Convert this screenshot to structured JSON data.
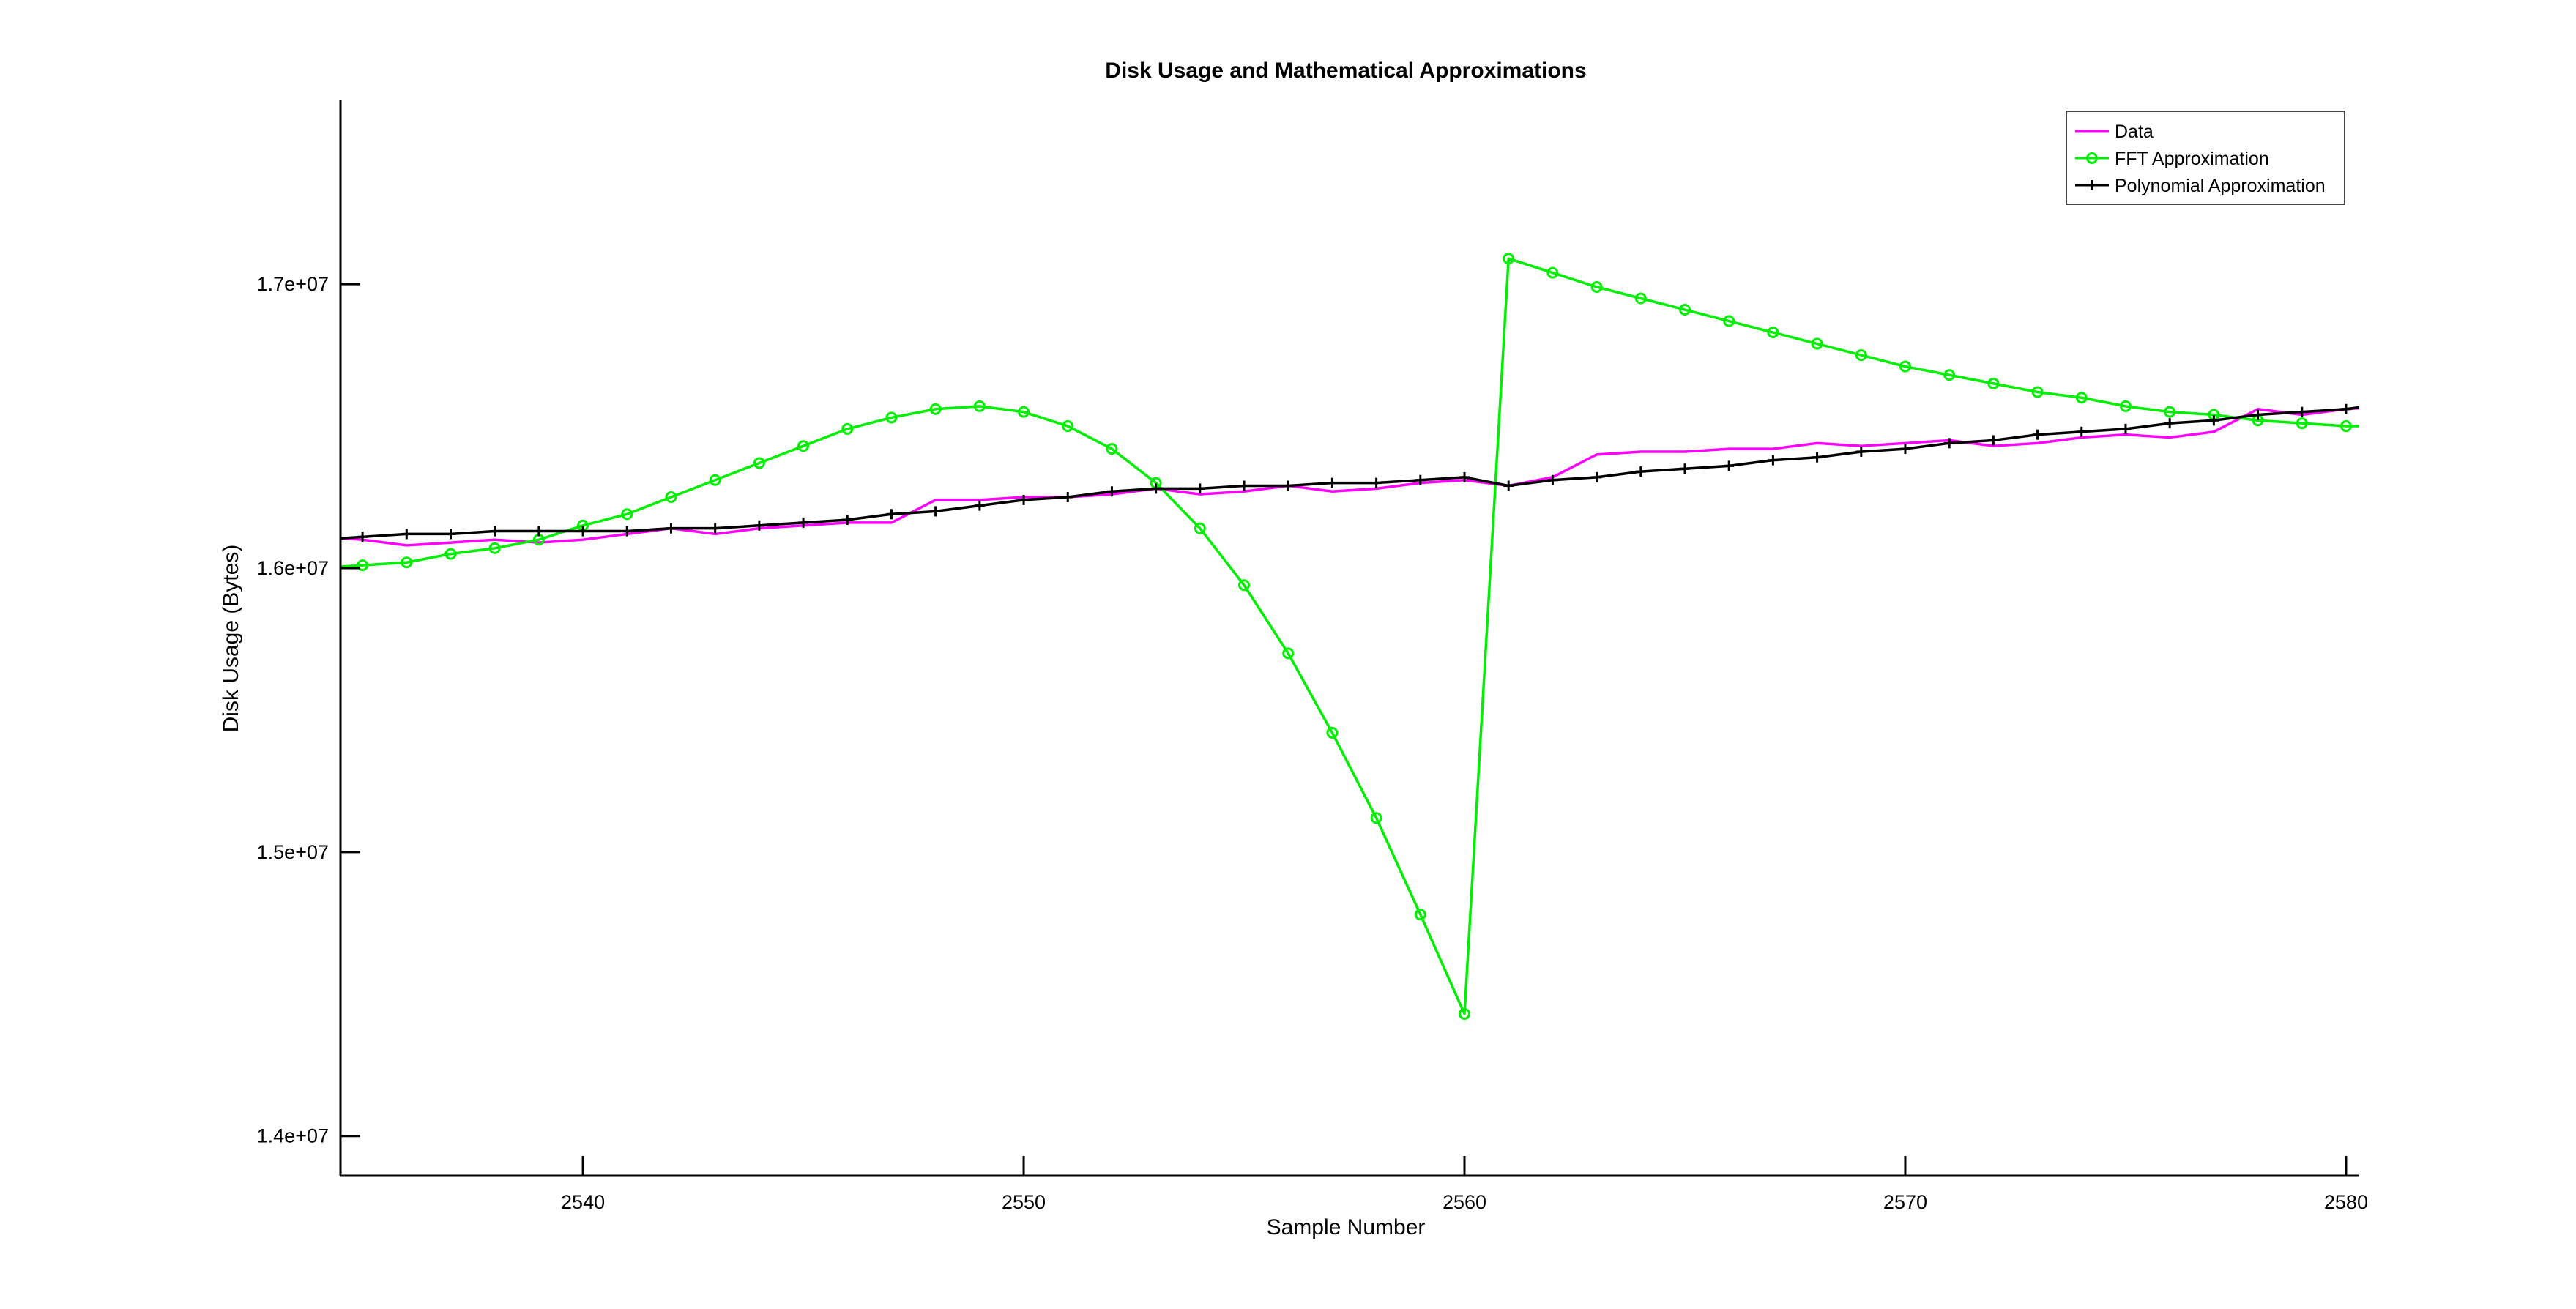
{
  "chart_data": {
    "type": "line",
    "title": "Disk Usage and Mathematical Approximations",
    "xlabel": "Sample Number",
    "ylabel": "Disk Usage (Bytes)",
    "xlim": [
      2534.5,
      2580.3
    ],
    "ylim": [
      13860000,
      17650000
    ],
    "xticks": [
      2540,
      2550,
      2560,
      2570,
      2580
    ],
    "xtick_labels": [
      "2540",
      "2550",
      "2560",
      "2570",
      "2580"
    ],
    "yticks": [
      14000000,
      15000000,
      16000000,
      17000000
    ],
    "ytick_labels": [
      "1.4e+07",
      "1.5e+07",
      "1.6e+07",
      "1.7e+07"
    ],
    "grid": false,
    "legend_position": "top-right",
    "x": [
      2534,
      2535,
      2536,
      2537,
      2538,
      2539,
      2540,
      2541,
      2542,
      2543,
      2544,
      2545,
      2546,
      2547,
      2548,
      2549,
      2550,
      2551,
      2552,
      2553,
      2554,
      2555,
      2556,
      2557,
      2558,
      2559,
      2560,
      2561,
      2562,
      2563,
      2564,
      2565,
      2566,
      2567,
      2568,
      2569,
      2570,
      2571,
      2572,
      2573,
      2574,
      2575,
      2576,
      2577,
      2578,
      2579,
      2580,
      2581
    ],
    "series": [
      {
        "name": "Data",
        "color": "#ff00ff",
        "marker": "none",
        "values": [
          16110000,
          16100000,
          16080000,
          16090000,
          16100000,
          16090000,
          16100000,
          16120000,
          16140000,
          16120000,
          16140000,
          16150000,
          16160000,
          16160000,
          16240000,
          16240000,
          16250000,
          16250000,
          16260000,
          16280000,
          16260000,
          16270000,
          16290000,
          16270000,
          16280000,
          16300000,
          16310000,
          16290000,
          16320000,
          16400000,
          16410000,
          16410000,
          16420000,
          16420000,
          16440000,
          16430000,
          16440000,
          16450000,
          16430000,
          16440000,
          16460000,
          16470000,
          16460000,
          16480000,
          16560000,
          16540000,
          16560000,
          16570000
        ]
      },
      {
        "name": "FFT Approximation",
        "color": "#00ee00",
        "marker": "circle",
        "values": [
          16000000,
          16010000,
          16020000,
          16050000,
          16070000,
          16100000,
          16150000,
          16190000,
          16250000,
          16310000,
          16370000,
          16430000,
          16490000,
          16530000,
          16560000,
          16570000,
          16550000,
          16500000,
          16420000,
          16300000,
          16140000,
          15940000,
          15700000,
          15420000,
          15120000,
          14780000,
          14430000,
          17090000,
          17040000,
          16990000,
          16950000,
          16910000,
          16870000,
          16830000,
          16790000,
          16750000,
          16710000,
          16680000,
          16650000,
          16620000,
          16600000,
          16570000,
          16550000,
          16540000,
          16520000,
          16510000,
          16500000,
          16500000
        ]
      },
      {
        "name": "Polynomial Approximation",
        "color": "#000000",
        "marker": "plus",
        "values": [
          16100000,
          16110000,
          16120000,
          16120000,
          16130000,
          16130000,
          16130000,
          16130000,
          16140000,
          16140000,
          16150000,
          16160000,
          16170000,
          16190000,
          16200000,
          16220000,
          16240000,
          16250000,
          16270000,
          16280000,
          16280000,
          16290000,
          16290000,
          16300000,
          16300000,
          16310000,
          16320000,
          16290000,
          16310000,
          16320000,
          16340000,
          16350000,
          16360000,
          16380000,
          16390000,
          16410000,
          16420000,
          16440000,
          16450000,
          16470000,
          16480000,
          16490000,
          16510000,
          16520000,
          16540000,
          16550000,
          16560000,
          16580000
        ]
      }
    ]
  }
}
